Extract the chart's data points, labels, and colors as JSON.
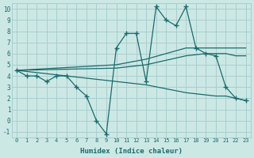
{
  "xlabel": "Humidex (Indice chaleur)",
  "xlim": [
    -0.5,
    23.5
  ],
  "ylim": [
    -1.5,
    10.5
  ],
  "xticks": [
    0,
    1,
    2,
    3,
    4,
    5,
    6,
    7,
    8,
    9,
    10,
    11,
    12,
    13,
    14,
    15,
    16,
    17,
    18,
    19,
    20,
    21,
    22,
    23
  ],
  "yticks": [
    -1,
    0,
    1,
    2,
    3,
    4,
    5,
    6,
    7,
    8,
    9,
    10
  ],
  "bg_color": "#cce8e5",
  "grid_color": "#a8cece",
  "line_color": "#1a6b6b",
  "line1_x": [
    0,
    1,
    2,
    3,
    4,
    5,
    6,
    7,
    8,
    9,
    10,
    11,
    12,
    13,
    14,
    15,
    16,
    17,
    18,
    19,
    20,
    21,
    22,
    23
  ],
  "line1_y": [
    4.5,
    4.0,
    4.0,
    3.5,
    4.0,
    4.0,
    3.0,
    2.2,
    0.0,
    -1.2,
    6.5,
    7.8,
    7.8,
    3.5,
    10.2,
    9.0,
    8.5,
    10.2,
    6.5,
    6.0,
    5.8,
    3.0,
    2.0,
    1.8
  ],
  "line2_x": [
    0,
    10,
    13,
    17,
    19,
    20,
    21,
    22,
    23
  ],
  "line2_y": [
    4.5,
    5.0,
    5.5,
    6.5,
    6.5,
    6.5,
    6.5,
    6.5,
    6.5
  ],
  "line3_x": [
    0,
    10,
    13,
    17,
    19,
    20,
    21,
    22,
    23
  ],
  "line3_y": [
    4.5,
    4.7,
    5.0,
    5.8,
    6.0,
    6.0,
    6.0,
    5.8,
    5.8
  ],
  "line4_x": [
    0,
    10,
    13,
    17,
    19,
    20,
    21,
    22,
    23
  ],
  "line4_y": [
    4.5,
    3.5,
    3.2,
    2.5,
    2.3,
    2.2,
    2.2,
    2.0,
    1.8
  ]
}
